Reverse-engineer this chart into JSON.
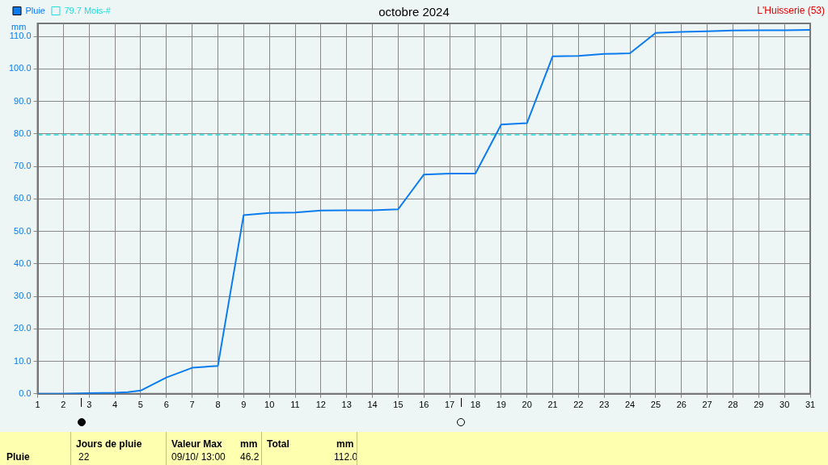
{
  "chart_data": {
    "type": "line",
    "title": "octobre 2024",
    "ylabel": "mm",
    "x": [
      1,
      2,
      3,
      4,
      4.5,
      5,
      6,
      7,
      8,
      9,
      10,
      11,
      12,
      13,
      14,
      15,
      16,
      17,
      18,
      19,
      20,
      21,
      22,
      23,
      24,
      25,
      26,
      27,
      28,
      29,
      30,
      31
    ],
    "series": [
      {
        "name": "Pluie",
        "color": "#0a7cf0",
        "values": [
          0,
          0,
          0.2,
          0.3,
          0.5,
          1.0,
          5.0,
          8.0,
          8.6,
          55.0,
          55.7,
          55.8,
          56.4,
          56.5,
          56.5,
          56.8,
          67.5,
          67.8,
          67.8,
          82.9,
          83.3,
          103.9,
          104.0,
          104.6,
          104.8,
          111.1,
          111.4,
          111.6,
          111.8,
          111.9,
          111.9,
          112.0
        ]
      }
    ],
    "ref_lines": [
      {
        "axis": "y",
        "value": 79.7,
        "label": "79.7 Mois-#",
        "color": "#22dddd",
        "line_style": "dashed"
      }
    ],
    "xlim": [
      1,
      31
    ],
    "xticks": [
      1,
      2,
      3,
      4,
      5,
      6,
      7,
      8,
      9,
      10,
      11,
      12,
      13,
      14,
      15,
      16,
      17,
      18,
      19,
      20,
      21,
      22,
      23,
      24,
      25,
      26,
      27,
      28,
      29,
      30,
      31
    ],
    "ylim": [
      0,
      114
    ],
    "yticks": [
      {
        "value": 0,
        "label": "0.0"
      },
      {
        "value": 10,
        "label": "10.0"
      },
      {
        "value": 20,
        "label": "20.0"
      },
      {
        "value": 30,
        "label": "30.0"
      },
      {
        "value": 40,
        "label": "40.0"
      },
      {
        "value": 50,
        "label": "50.0"
      },
      {
        "value": 60,
        "label": "60.0"
      },
      {
        "value": 70,
        "label": "70.0"
      },
      {
        "value": 80,
        "label": "80.0"
      },
      {
        "value": 90,
        "label": "90.0"
      },
      {
        "value": 100,
        "label": "100.0"
      },
      {
        "value": 110,
        "label": "110.0"
      }
    ],
    "grid": true,
    "legend": "top left",
    "marker": "none",
    "line_style": "solid",
    "annotations": [
      "L'Huisserie (53)",
      "Pluie",
      "Jours de pluie",
      "22",
      "Valeur Max",
      "mm",
      "09/10/ 13:00",
      "46.2",
      "Total",
      "mm",
      "112.0"
    ]
  }
}
